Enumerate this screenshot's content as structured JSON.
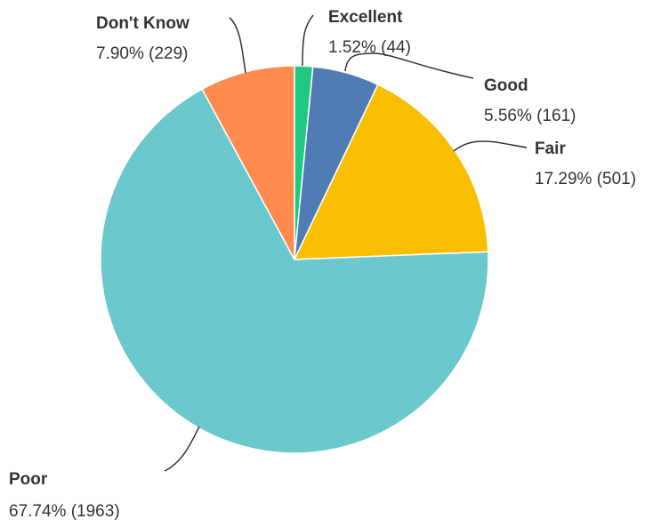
{
  "chart_data": {
    "type": "pie",
    "title": "",
    "slices": [
      {
        "label": "Excellent",
        "percent": 1.52,
        "count": 44,
        "percent_text": "1.52% (44)",
        "color": "#1ec87e"
      },
      {
        "label": "Good",
        "percent": 5.56,
        "count": 161,
        "percent_text": "5.56% (161)",
        "color": "#507cb6"
      },
      {
        "label": "Fair",
        "percent": 17.29,
        "count": 501,
        "percent_text": "17.29% (501)",
        "color": "#f9be00"
      },
      {
        "label": "Poor",
        "percent": 67.74,
        "count": 1963,
        "percent_text": "67.74% (1963)",
        "color": "#6bc8cd"
      },
      {
        "label": "Don't Know",
        "percent": 7.9,
        "count": 229,
        "percent_text": "7.90% (229)",
        "color": "#ff8b4f"
      }
    ],
    "start_angle": "12 o'clock",
    "direction": "clockwise",
    "legend": "none"
  }
}
